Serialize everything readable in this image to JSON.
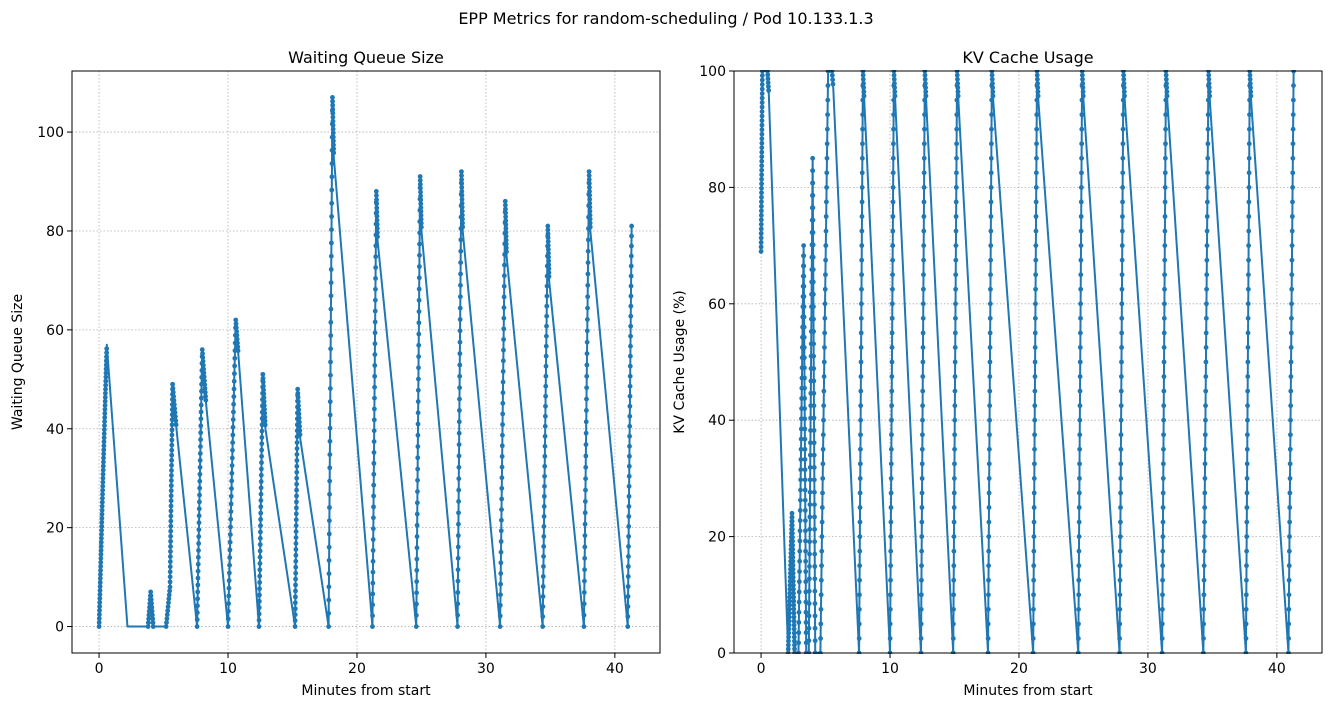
{
  "figure": {
    "title": "EPP Metrics for random-scheduling / Pod 10.133.1.3"
  },
  "chart_data": [
    {
      "type": "line",
      "title": "Waiting Queue Size",
      "xlabel": "Minutes from start",
      "ylabel": "Waiting Queue Size",
      "xlim": [
        -2.1,
        43.5
      ],
      "ylim": [
        -5.35,
        112.35
      ],
      "xticks": [
        0,
        10,
        20,
        30,
        40
      ],
      "yticks": [
        0,
        20,
        40,
        60,
        80,
        100
      ],
      "grid": true,
      "marker": "circle",
      "color": "#1f77b4",
      "series": [
        {
          "x": [
            0.0,
            0.3,
            0.6,
            2.2,
            3.8,
            4.0,
            4.2,
            5.2,
            5.5,
            5.7,
            6.0,
            7.6,
            8.0,
            8.3,
            10.0,
            10.6,
            10.8,
            12.4,
            12.7,
            12.9,
            15.2,
            15.4,
            15.6,
            17.8,
            18.1,
            18.2,
            21.2,
            21.5,
            21.6,
            24.6,
            24.9,
            25.0,
            27.8,
            28.1,
            28.2,
            31.1,
            31.5,
            31.6,
            34.4,
            34.8,
            34.9,
            37.6,
            38.0,
            38.1,
            41.0,
            41.3
          ],
          "y": [
            0,
            30,
            57,
            0,
            0,
            7,
            0,
            0,
            8,
            49,
            40,
            0,
            56,
            45,
            0,
            62,
            55,
            0,
            51,
            40,
            0,
            48,
            38,
            0,
            107,
            95,
            0,
            88,
            78,
            0,
            91,
            80,
            0,
            92,
            80,
            0,
            86,
            75,
            0,
            81,
            70,
            0,
            92,
            80,
            0,
            81
          ]
        }
      ]
    },
    {
      "type": "line",
      "title": "KV Cache Usage",
      "xlabel": "Minutes from start",
      "ylabel": "KV Cache Usage (%)",
      "xlim": [
        -2.1,
        43.5
      ],
      "ylim": [
        0,
        100
      ],
      "xticks": [
        0,
        10,
        20,
        30,
        40
      ],
      "yticks": [
        0,
        20,
        40,
        60,
        80,
        100
      ],
      "grid": true,
      "marker": "circle",
      "color": "#1f77b4",
      "series": [
        {
          "x": [
            0.0,
            0.1,
            0.5,
            0.6,
            2.1,
            2.4,
            2.6,
            2.9,
            3.3,
            3.5,
            3.7,
            4.0,
            4.2,
            4.6,
            5.2,
            5.5,
            5.6,
            7.6,
            7.9,
            8.0,
            10.0,
            10.3,
            10.4,
            12.4,
            12.7,
            12.8,
            14.9,
            15.2,
            15.3,
            17.6,
            17.9,
            18.0,
            21.1,
            21.4,
            21.5,
            24.6,
            24.9,
            25.0,
            27.8,
            28.1,
            28.2,
            31.1,
            31.4,
            31.5,
            34.3,
            34.7,
            34.8,
            37.6,
            37.9,
            38.0,
            40.9,
            41.3
          ],
          "y": [
            69,
            100,
            100,
            96,
            0,
            24,
            0,
            0,
            70,
            0,
            0,
            85,
            0,
            0,
            100,
            100,
            97,
            0,
            100,
            95,
            0,
            100,
            95,
            0,
            100,
            95,
            0,
            100,
            95,
            0,
            100,
            95,
            0,
            100,
            95,
            0,
            100,
            95,
            0,
            100,
            95,
            0,
            100,
            95,
            0,
            100,
            95,
            0,
            100,
            95,
            0,
            100
          ]
        }
      ]
    }
  ]
}
